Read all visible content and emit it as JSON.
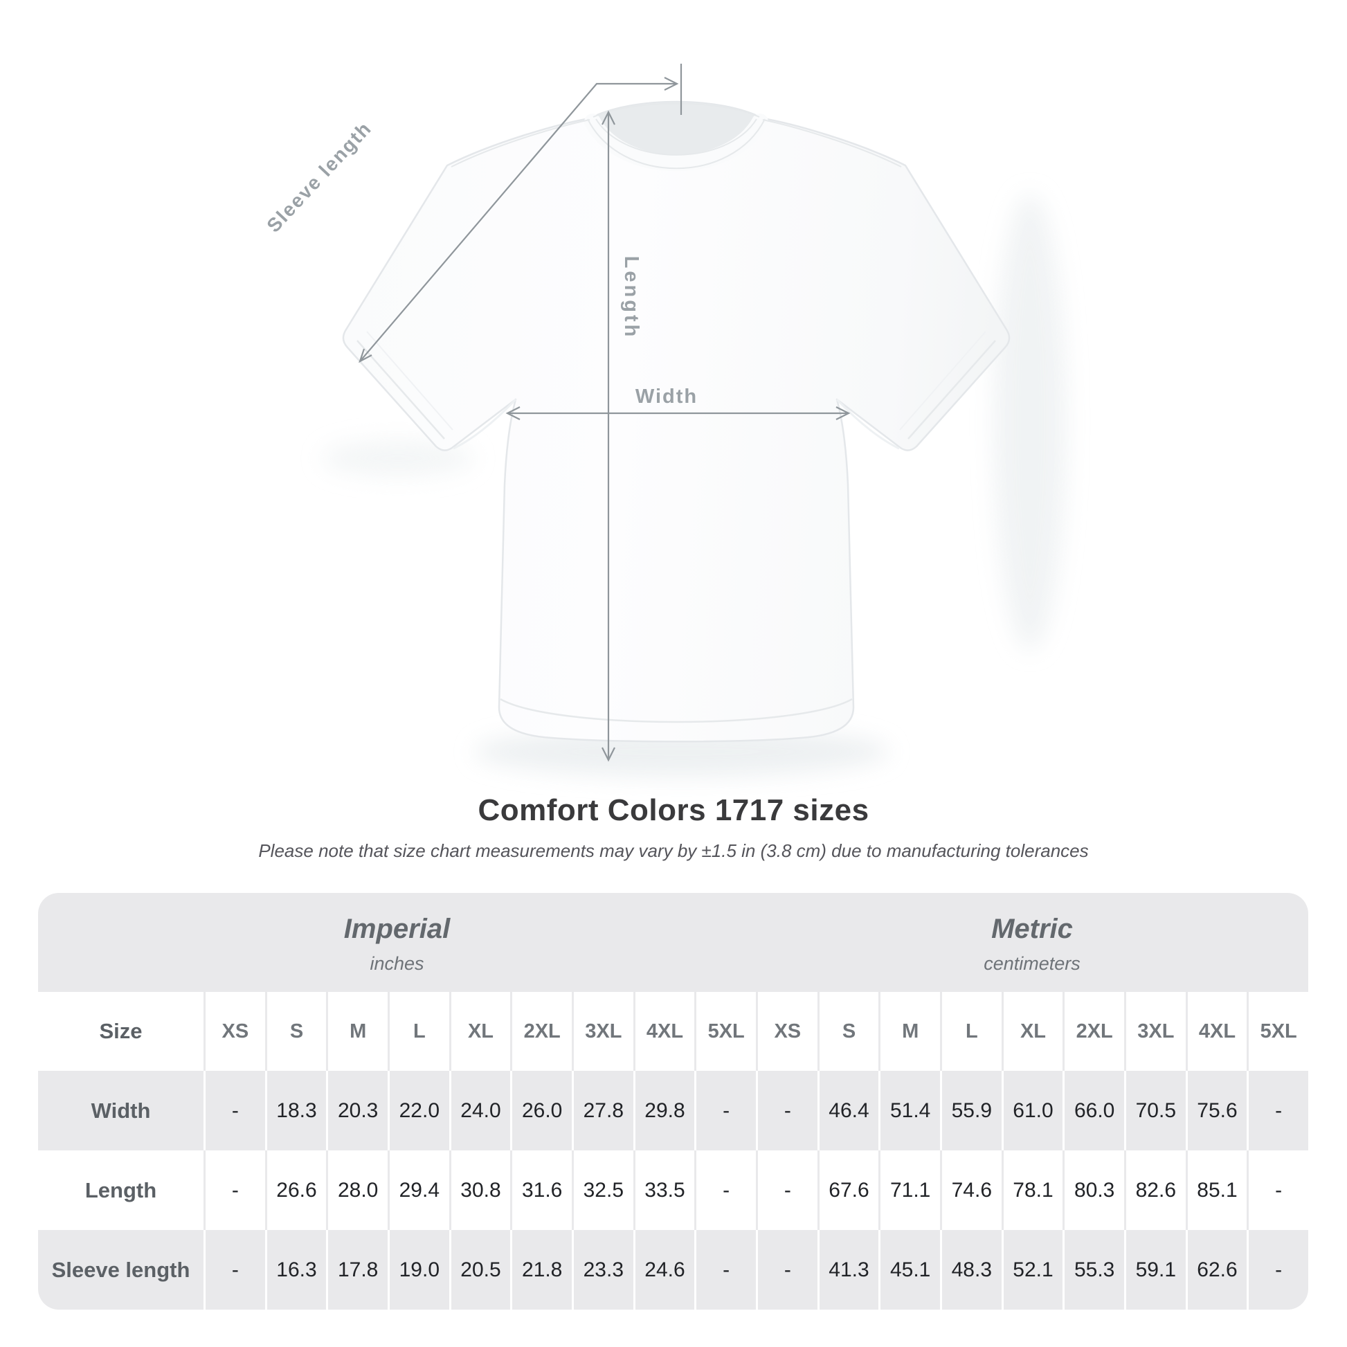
{
  "page": {
    "title": "Comfort Colors 1717 sizes",
    "subtitle": "Please note that size chart measurements may vary by ±1.5 in (3.8 cm) due to manufacturing tolerances"
  },
  "diagram": {
    "sleeve_label": "Sleeve length",
    "length_label": "Length",
    "width_label": "Width"
  },
  "table": {
    "corner_label": "Size",
    "sections": [
      {
        "label": "Imperial",
        "unit": "inches"
      },
      {
        "label": "Metric",
        "unit": "centimeters"
      }
    ],
    "sizes": [
      "XS",
      "S",
      "M",
      "L",
      "XL",
      "2XL",
      "3XL",
      "4XL",
      "5XL"
    ],
    "rows": [
      {
        "label": "Width",
        "imperial": [
          "-",
          "18.3",
          "20.3",
          "22.0",
          "24.0",
          "26.0",
          "27.8",
          "29.8",
          "-"
        ],
        "metric": [
          "-",
          "46.4",
          "51.4",
          "55.9",
          "61.0",
          "66.0",
          "70.5",
          "75.6",
          "-"
        ]
      },
      {
        "label": "Length",
        "imperial": [
          "-",
          "26.6",
          "28.0",
          "29.4",
          "30.8",
          "31.6",
          "32.5",
          "33.5",
          "-"
        ],
        "metric": [
          "-",
          "67.6",
          "71.1",
          "74.6",
          "78.1",
          "80.3",
          "82.6",
          "85.1",
          "-"
        ]
      },
      {
        "label": "Sleeve length",
        "imperial": [
          "-",
          "16.3",
          "17.8",
          "19.0",
          "20.5",
          "21.8",
          "23.3",
          "24.6",
          "-"
        ],
        "metric": [
          "-",
          "41.3",
          "45.1",
          "48.3",
          "52.1",
          "55.3",
          "59.1",
          "62.6",
          "-"
        ]
      }
    ]
  },
  "colors": {
    "band": "#e9e9eb",
    "stripe": "#e9e9eb",
    "sep_white_row": "#e9e9eb",
    "sep_gray_row": "#ffffff",
    "title": "#3a3a3c",
    "subtitle": "#54545a",
    "section_label": "#63686d",
    "unit_label": "#6e7378",
    "size_header": "#71767b",
    "row_label": "#5b6065",
    "value": "#212327",
    "arrow": "#8f969b",
    "diagram_label": "#9aa1a6"
  }
}
